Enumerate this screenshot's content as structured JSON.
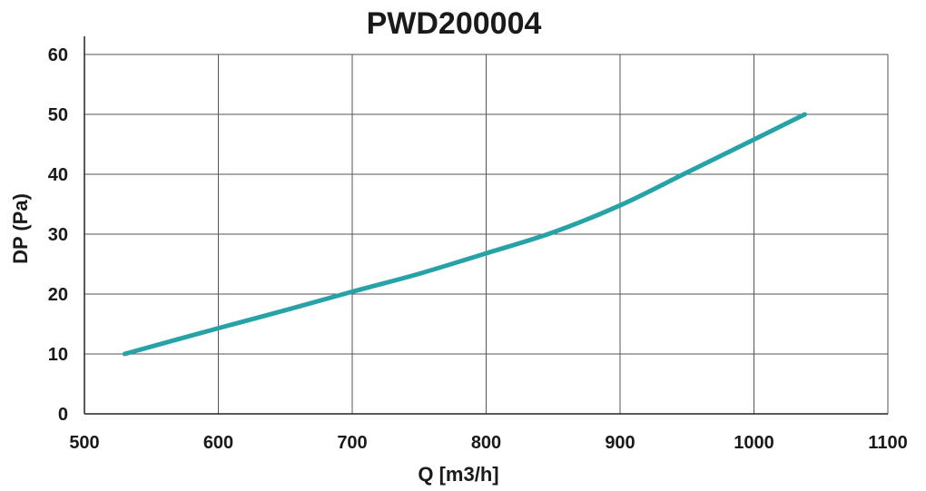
{
  "chart_data": {
    "type": "line",
    "title": "PWD200004",
    "xlabel": "Q [m3/h]",
    "ylabel": "DP (Pa)",
    "xlim": [
      500,
      1100
    ],
    "ylim": [
      0,
      60
    ],
    "x_ticks": [
      "500",
      "600",
      "700",
      "800",
      "900",
      "1000",
      "1100"
    ],
    "y_ticks": [
      "0",
      "10",
      "20",
      "30",
      "40",
      "50",
      "60"
    ],
    "grid": true,
    "series": [
      {
        "color": "#27a3a8",
        "x": [
          530,
          600,
          650,
          700,
          750,
          800,
          850,
          900,
          950,
          1000,
          1038
        ],
        "y": [
          10,
          14.3,
          17.3,
          20.4,
          23.4,
          26.8,
          30.3,
          34.8,
          40.3,
          45.8,
          50
        ]
      }
    ]
  }
}
